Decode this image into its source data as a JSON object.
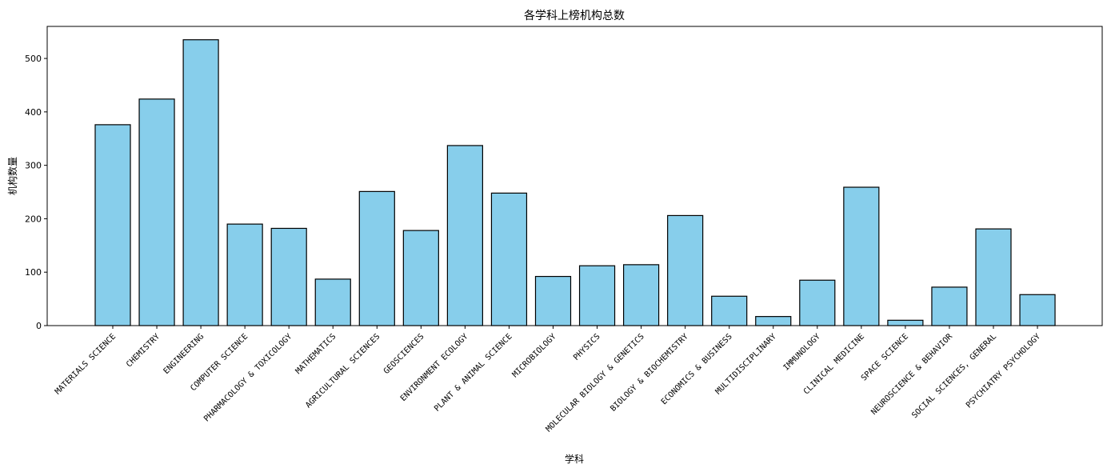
{
  "chart_data": {
    "type": "bar",
    "title": "各学科上榜机构总数",
    "xlabel": "学科",
    "ylabel": "机构数量",
    "ylim": [
      0,
      560
    ],
    "yticks": [
      0,
      100,
      200,
      300,
      400,
      500
    ],
    "grid": false,
    "bar_color": "#87CEEB",
    "edge_color": "#000000",
    "categories": [
      "MATERIALS SCIENCE",
      "CHEMISTRY",
      "ENGINEERING",
      "COMPUTER SCIENCE",
      "PHARMACOLOGY & TOXICOLOGY",
      "MATHEMATICS",
      "AGRICULTURAL SCIENCES",
      "GEOSCIENCES",
      "ENVIRONMENT ECOLOGY",
      "PLANT & ANIMAL SCIENCE",
      "MICROBIOLOGY",
      "PHYSICS",
      "MOLECULAR BIOLOGY & GENETICS",
      "BIOLOGY & BIOCHEMISTRY",
      "ECONOMICS & BUSINESS",
      "MULTIDISCIPLINARY",
      "IMMUNOLOGY",
      "CLINICAL MEDICINE",
      "SPACE SCIENCE",
      "NEUROSCIENCE & BEHAVIOR",
      "SOCIAL SCIENCES, GENERAL",
      "PSYCHIATRY PSYCHOLOGY"
    ],
    "values": [
      376,
      424,
      535,
      190,
      182,
      87,
      251,
      178,
      337,
      248,
      92,
      112,
      114,
      206,
      55,
      17,
      85,
      259,
      10,
      72,
      181,
      58
    ]
  }
}
